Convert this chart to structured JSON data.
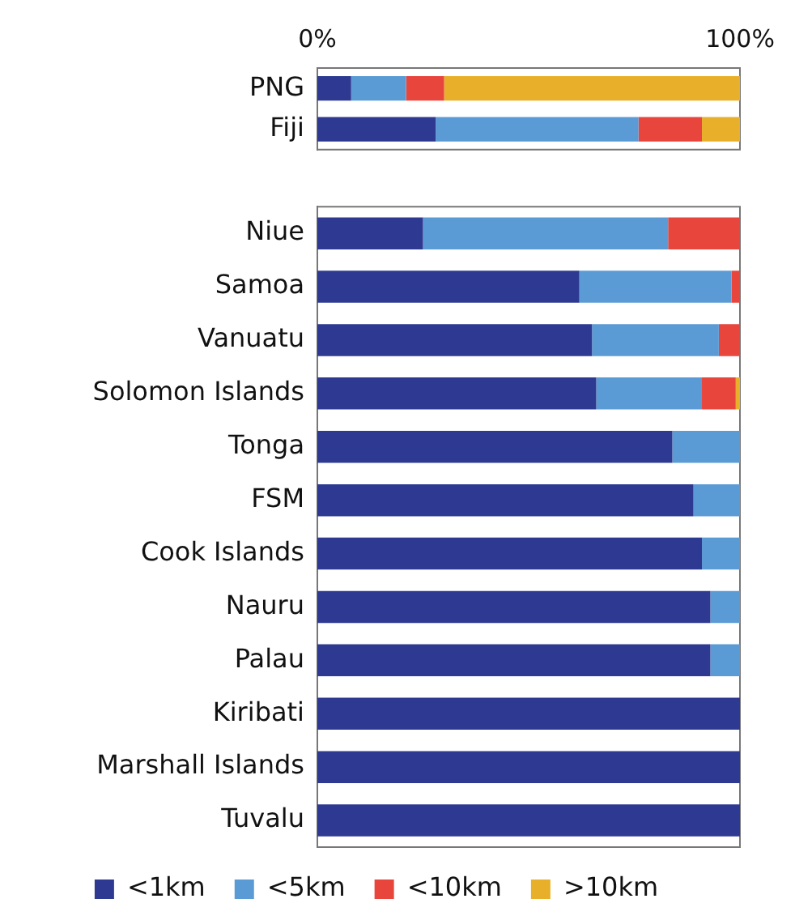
{
  "chart_data": [
    {
      "type": "bar",
      "orientation": "horizontal",
      "stacked": true,
      "categories": [
        "PNG",
        "Fiji"
      ],
      "xlim": [
        0,
        100
      ],
      "xticks": [
        {
          "value": 0,
          "label": "0%"
        },
        {
          "value": 100,
          "label": "100%"
        }
      ],
      "grid": false,
      "legend": false,
      "series": [
        {
          "color": "#2e3a92",
          "values": [
            8,
            28
          ]
        },
        {
          "color": "#5b9bd5",
          "values": [
            13,
            48
          ]
        },
        {
          "color": "#e8453c",
          "values": [
            9,
            15
          ]
        },
        {
          "color": "#e8b02a",
          "values": [
            70,
            9
          ]
        }
      ]
    },
    {
      "type": "bar",
      "orientation": "horizontal",
      "stacked": true,
      "categories": [
        "Niue",
        "Samoa",
        "Vanuatu",
        "Solomon Islands",
        "Tonga",
        "FSM",
        "Cook Islands",
        "Nauru",
        "Palau",
        "Kiribati",
        "Marshall Islands",
        "Tuvalu"
      ],
      "xlim": [
        0,
        100
      ],
      "tick_labels": "y",
      "grid": false,
      "legend": "bottom",
      "series": [
        {
          "name": "<1km",
          "color": "#2e3a92",
          "values": [
            25,
            62,
            65,
            66,
            84,
            89,
            91,
            93,
            93,
            100,
            100,
            100
          ]
        },
        {
          "name": "<5km",
          "color": "#5b9bd5",
          "values": [
            58,
            36,
            30,
            25,
            16,
            11,
            9,
            7,
            7,
            0,
            0,
            0
          ]
        },
        {
          "name": "<10km",
          "color": "#e8453c",
          "values": [
            17,
            2,
            5,
            8,
            0,
            0,
            0,
            0,
            0,
            0,
            0,
            0
          ]
        },
        {
          "name": ">10km",
          "color": "#e8b02a",
          "values": [
            0,
            0,
            0,
            1,
            0,
            0,
            0,
            0,
            0,
            0,
            0,
            0
          ]
        }
      ]
    }
  ]
}
